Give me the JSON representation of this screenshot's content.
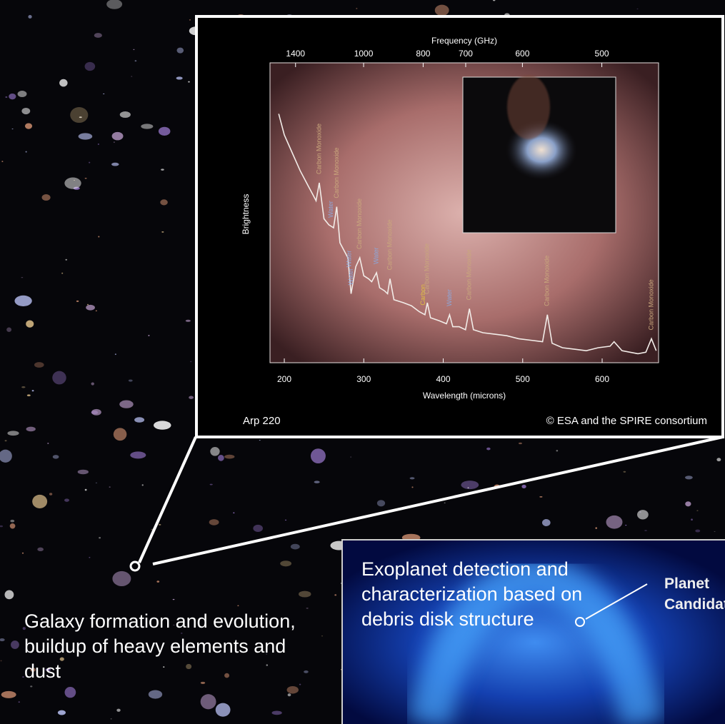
{
  "chart_data": {
    "type": "line",
    "x_label": "Wavelength (microns)",
    "x2_label": "Frequency (GHz)",
    "y_label": "Brightness",
    "x": [
      193,
      200,
      210,
      220,
      230,
      236,
      240,
      244,
      250,
      256,
      262,
      266,
      270,
      276,
      280,
      284,
      290,
      295,
      300,
      306,
      310,
      316,
      320,
      326,
      330,
      333,
      338,
      350,
      360,
      370,
      377,
      380,
      384,
      395,
      404,
      408,
      412,
      420,
      428,
      433,
      438,
      450,
      465,
      480,
      495,
      510,
      525,
      531,
      537,
      550,
      565,
      580,
      595,
      610,
      615,
      625,
      635,
      645,
      655,
      662,
      668
    ],
    "values": [
      83,
      76,
      70,
      64,
      59,
      56,
      54,
      60,
      48,
      46,
      45,
      52,
      40,
      37,
      35,
      23,
      32,
      35,
      29,
      28,
      27,
      30,
      25,
      24,
      23,
      28,
      21,
      20,
      19,
      17,
      16,
      20,
      15,
      14,
      13,
      16,
      12,
      12,
      11,
      18,
      11,
      10,
      9.5,
      9,
      8,
      7.5,
      7,
      16,
      6.5,
      5,
      4.5,
      4,
      5,
      5.5,
      7,
      4,
      3.5,
      3,
      3.5,
      8,
      4
    ],
    "color": "#f2ece8",
    "xlim": [
      182,
      671
    ],
    "ylim": [
      0,
      100
    ],
    "xticks": [
      200,
      300,
      400,
      500,
      600
    ],
    "x2ticks": [
      1400,
      1000,
      800,
      700,
      600,
      500
    ],
    "annotations": [
      {
        "label": "Carbon Monoxide",
        "x": 244,
        "color": "#c9a77c"
      },
      {
        "label": "Water",
        "x": 259,
        "color": "#8ea6d8"
      },
      {
        "label": "Carbon Monoxide",
        "x": 266,
        "color": "#c9a77c"
      },
      {
        "label": "Water",
        "x": 284,
        "color": "#8ea6d8"
      },
      {
        "label": "Water",
        "x": 282,
        "color": "#8ea6d8"
      },
      {
        "label": "Carbon Monoxide",
        "x": 295,
        "color": "#c9a77c"
      },
      {
        "label": "Water",
        "x": 316,
        "color": "#8ea6d8"
      },
      {
        "label": "Carbon Monoxide",
        "x": 333,
        "color": "#c9a77c"
      },
      {
        "label": "Carbon",
        "x": 375,
        "color": "#e0c040"
      },
      {
        "label": "Carbon Monoxide",
        "x": 380,
        "color": "#c9a77c"
      },
      {
        "label": "Water",
        "x": 408,
        "color": "#8ea6d8"
      },
      {
        "label": "Carbon Monoxide",
        "x": 433,
        "color": "#c9a77c"
      },
      {
        "label": "Carbon Monoxide",
        "x": 531,
        "color": "#c9a77c"
      },
      {
        "label": "Carbon Monoxide",
        "x": 662,
        "color": "#c9a77c"
      }
    ],
    "object": "Arp 220",
    "credit": "© ESA and the SPIRE consortium"
  },
  "captions": {
    "galaxy": "Galaxy formation and evolution, buildup of heavy elements and dust",
    "exoplanet": "Exoplanet detection and characterization based on debris disk structure",
    "planet": "Planet Candidate"
  }
}
